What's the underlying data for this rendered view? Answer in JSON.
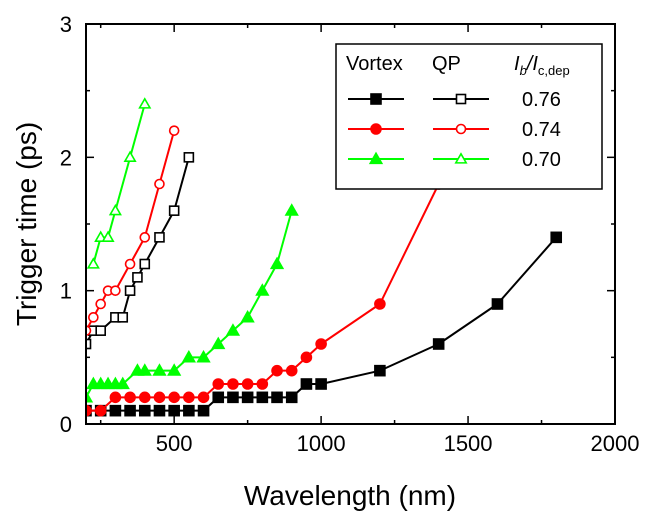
{
  "chart_data": {
    "type": "line",
    "xlabel": "Wavelength (nm)",
    "ylabel": "Trigger time (ps)",
    "xlim": [
      200,
      2000
    ],
    "ylim": [
      0,
      3
    ],
    "xticks": [
      500,
      1000,
      1500,
      2000
    ],
    "yticks": [
      0,
      1,
      2,
      3
    ],
    "grid": false,
    "legend": {
      "placement": "top-right",
      "header_vortex": "Vortex",
      "header_qp": "QP",
      "header_ratio_main": "I",
      "header_ratio_sub1": "b",
      "header_ratio_mid": "/I",
      "header_ratio_sub2": "c,dep",
      "rows": [
        {
          "label": "0.76",
          "color": "#000000"
        },
        {
          "label": "0.74",
          "color": "#ff0000"
        },
        {
          "label": "0.70",
          "color": "#00ff00"
        }
      ]
    },
    "series": [
      {
        "name": "Vortex 0.76",
        "color": "#000000",
        "marker": "square",
        "filled": true,
        "x": [
          200,
          250,
          300,
          350,
          400,
          450,
          500,
          550,
          600,
          650,
          700,
          750,
          800,
          850,
          900,
          950,
          1000,
          1200,
          1400,
          1600,
          1800
        ],
        "y": [
          0.1,
          0.1,
          0.1,
          0.1,
          0.1,
          0.1,
          0.1,
          0.1,
          0.1,
          0.2,
          0.2,
          0.2,
          0.2,
          0.2,
          0.2,
          0.3,
          0.3,
          0.4,
          0.6,
          0.9,
          1.4
        ]
      },
      {
        "name": "Vortex 0.74",
        "color": "#ff0000",
        "marker": "circle",
        "filled": true,
        "x": [
          200,
          250,
          300,
          350,
          400,
          450,
          500,
          550,
          600,
          650,
          700,
          750,
          800,
          850,
          900,
          950,
          1000,
          1200,
          1400
        ],
        "y": [
          0.1,
          0.1,
          0.2,
          0.2,
          0.2,
          0.2,
          0.2,
          0.2,
          0.2,
          0.3,
          0.3,
          0.3,
          0.3,
          0.4,
          0.4,
          0.5,
          0.6,
          0.9,
          1.8
        ]
      },
      {
        "name": "Vortex 0.70",
        "color": "#00ff00",
        "marker": "triangle",
        "filled": true,
        "x": [
          200,
          225,
          250,
          275,
          300,
          325,
          375,
          400,
          450,
          500,
          550,
          600,
          650,
          700,
          750,
          800,
          850,
          900
        ],
        "y": [
          0.2,
          0.3,
          0.3,
          0.3,
          0.3,
          0.3,
          0.4,
          0.4,
          0.4,
          0.4,
          0.5,
          0.5,
          0.6,
          0.7,
          0.8,
          1.0,
          1.2,
          1.6
        ]
      },
      {
        "name": "QP 0.76",
        "color": "#000000",
        "marker": "square",
        "filled": false,
        "x": [
          200,
          225,
          250,
          300,
          325,
          350,
          375,
          400,
          450,
          500,
          550
        ],
        "y": [
          0.6,
          0.7,
          0.7,
          0.8,
          0.8,
          1.0,
          1.1,
          1.2,
          1.4,
          1.6,
          2.0
        ]
      },
      {
        "name": "QP 0.74",
        "color": "#ff0000",
        "marker": "circle",
        "filled": false,
        "x": [
          200,
          225,
          250,
          275,
          300,
          350,
          400,
          450,
          500
        ],
        "y": [
          0.7,
          0.8,
          0.9,
          1.0,
          1.0,
          1.2,
          1.4,
          1.8,
          2.2
        ]
      },
      {
        "name": "QP 0.70",
        "color": "#00ff00",
        "marker": "triangle",
        "filled": false,
        "x": [
          225,
          250,
          275,
          300,
          350,
          400
        ],
        "y": [
          1.2,
          1.4,
          1.4,
          1.6,
          2.0,
          2.4
        ]
      }
    ]
  }
}
